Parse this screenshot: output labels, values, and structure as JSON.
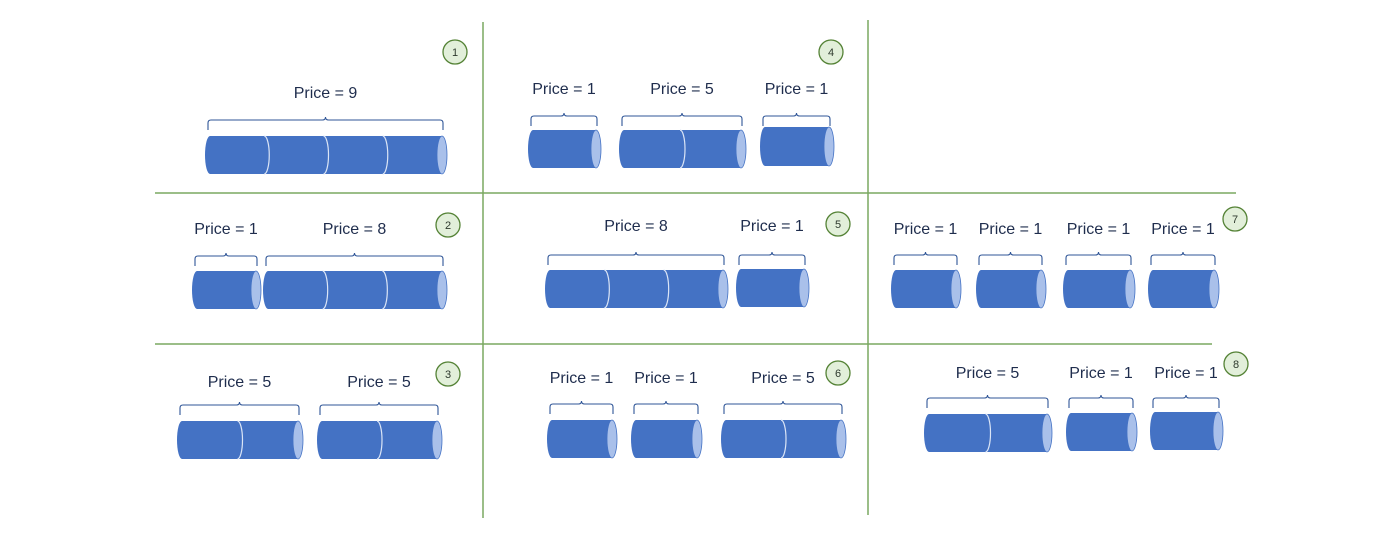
{
  "colors": {
    "grid_line": "#7aa860",
    "rod_fill": "#4472c4",
    "rod_end": "#a9c0ea",
    "rod_seam": "#dbe5f6",
    "brace": "#2f5597",
    "badge_fill": "#e2efda",
    "badge_stroke": "#548235"
  },
  "panels": [
    {
      "number": "1",
      "pieces": [
        {
          "length": 4,
          "label": "Price = 9"
        }
      ]
    },
    {
      "number": "2",
      "pieces": [
        {
          "length": 1,
          "label": "Price = 1"
        },
        {
          "length": 3,
          "label": "Price = 8"
        }
      ]
    },
    {
      "number": "3",
      "pieces": [
        {
          "length": 2,
          "label": "Price = 5"
        },
        {
          "length": 2,
          "label": "Price = 5"
        }
      ]
    },
    {
      "number": "4",
      "pieces": [
        {
          "length": 1,
          "label": "Price = 1"
        },
        {
          "length": 2,
          "label": "Price = 5"
        },
        {
          "length": 1,
          "label": "Price = 1"
        }
      ]
    },
    {
      "number": "5",
      "pieces": [
        {
          "length": 3,
          "label": "Price = 8"
        },
        {
          "length": 1,
          "label": "Price = 1"
        }
      ]
    },
    {
      "number": "6",
      "pieces": [
        {
          "length": 1,
          "label": "Price = 1"
        },
        {
          "length": 1,
          "label": "Price = 1"
        },
        {
          "length": 2,
          "label": "Price = 5"
        }
      ]
    },
    {
      "number": "7",
      "pieces": [
        {
          "length": 1,
          "label": "Price = 1"
        },
        {
          "length": 1,
          "label": "Price = 1"
        },
        {
          "length": 1,
          "label": "Price = 1"
        },
        {
          "length": 1,
          "label": "Price = 1"
        }
      ]
    },
    {
      "number": "8",
      "pieces": [
        {
          "length": 2,
          "label": "Price = 5"
        },
        {
          "length": 1,
          "label": "Price = 1"
        },
        {
          "length": 1,
          "label": "Price = 1"
        }
      ]
    }
  ]
}
